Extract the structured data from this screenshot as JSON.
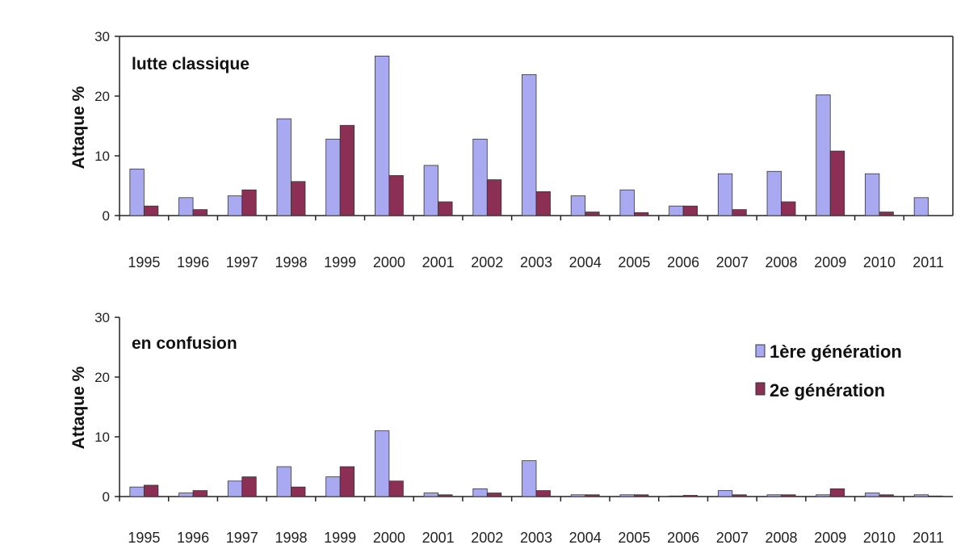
{
  "colors": {
    "series1": "#a9a9f2",
    "series2": "#8b2f55",
    "axis": "#222222",
    "bar_edge": "#333333"
  },
  "legend": {
    "items": [
      "1ère génération",
      "2e génération"
    ],
    "position": "top-right (bottom panel)"
  },
  "chart_data": [
    {
      "type": "bar",
      "title": "lutte classique",
      "ylabel": "Attaque %",
      "xlabel": "",
      "ylim": [
        0,
        30
      ],
      "yticks": [
        0,
        10,
        20,
        30
      ],
      "grid": false,
      "categories": [
        "1995",
        "1996",
        "1997",
        "1998",
        "1999",
        "2000",
        "2001",
        "2002",
        "2003",
        "2004",
        "2005",
        "2006",
        "2007",
        "2008",
        "2009",
        "2010",
        "2011"
      ],
      "series": [
        {
          "name": "1ère génération",
          "values": [
            7.8,
            3.0,
            3.3,
            16.2,
            12.8,
            26.7,
            8.4,
            12.8,
            23.6,
            3.3,
            4.3,
            1.6,
            7.0,
            7.4,
            20.2,
            7.0,
            3.0
          ]
        },
        {
          "name": "2e génération",
          "values": [
            1.6,
            1.0,
            4.3,
            5.7,
            15.1,
            6.7,
            2.3,
            6.0,
            4.0,
            0.6,
            0.5,
            1.6,
            1.0,
            2.3,
            10.8,
            0.6,
            0
          ]
        }
      ]
    },
    {
      "type": "bar",
      "title": "en confusion",
      "ylabel": "Attaque %",
      "xlabel": "",
      "ylim": [
        0,
        30
      ],
      "yticks": [
        0,
        10,
        20,
        30
      ],
      "grid": false,
      "categories": [
        "1995",
        "1996",
        "1997",
        "1998",
        "1999",
        "2000",
        "2001",
        "2002",
        "2003",
        "2004",
        "2005",
        "2006",
        "2007",
        "2008",
        "2009",
        "2010",
        "2011"
      ],
      "series": [
        {
          "name": "1ère génération",
          "values": [
            1.6,
            0.6,
            2.6,
            5.0,
            3.3,
            11.0,
            0.6,
            1.3,
            6.0,
            0.3,
            0.3,
            0.1,
            1.0,
            0.3,
            0.3,
            0.6,
            0.3
          ]
        },
        {
          "name": "2e génération",
          "values": [
            1.9,
            1.0,
            3.3,
            1.6,
            5.0,
            2.6,
            0.3,
            0.6,
            1.0,
            0.3,
            0.3,
            0.2,
            0.3,
            0.3,
            1.3,
            0.3,
            0.1
          ]
        }
      ]
    }
  ]
}
